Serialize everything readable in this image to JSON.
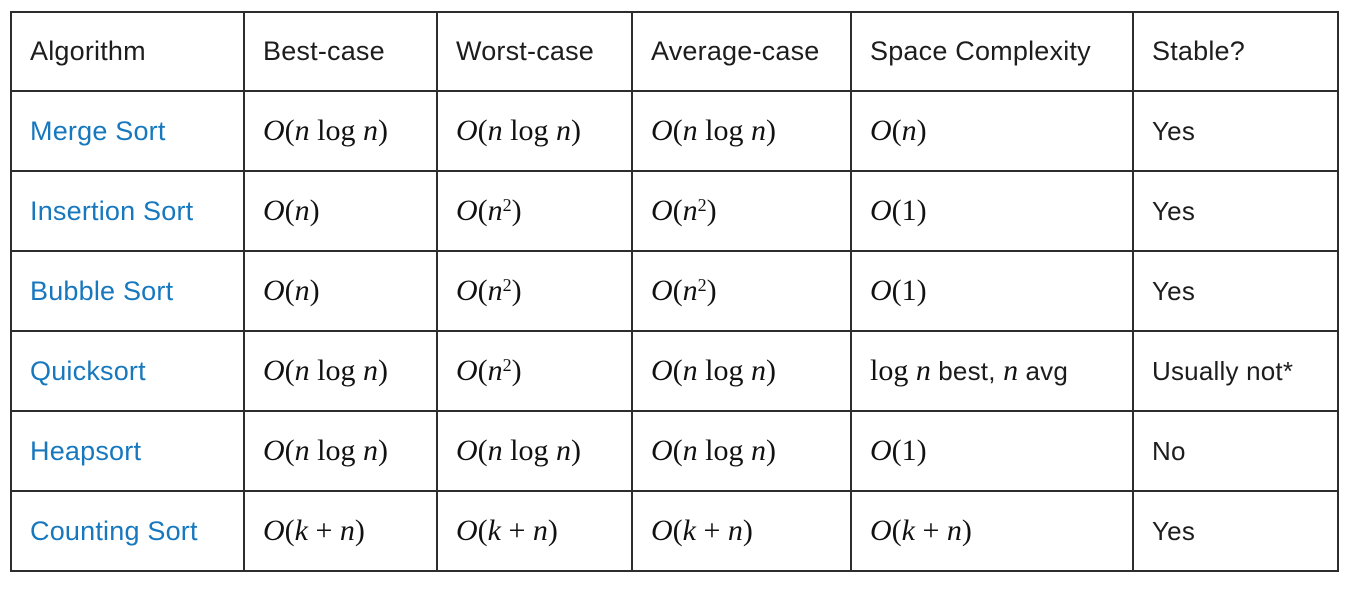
{
  "colors": {
    "link_blue": "#1778be",
    "border": "#2d2d2d",
    "text": "#1d1d1d",
    "background": "#ffffff"
  },
  "table": {
    "headers": [
      "Algorithm",
      "Best-case",
      "Worst-case",
      "Average-case",
      "Space Complexity",
      "Stable?"
    ],
    "rows": [
      {
        "name": "Merge Sort",
        "best": [
          {
            "m": "O(n log n)"
          }
        ],
        "worst": [
          {
            "m": "O(n log n)"
          }
        ],
        "avg": [
          {
            "m": "O(n log n)"
          }
        ],
        "space": [
          {
            "m": "O(n)"
          }
        ],
        "stable": "Yes"
      },
      {
        "name": "Insertion Sort",
        "best": [
          {
            "m": "O(n)"
          }
        ],
        "worst": [
          {
            "m": "O(n^2)"
          }
        ],
        "avg": [
          {
            "m": "O(n^2)"
          }
        ],
        "space": [
          {
            "m": "O(1)"
          }
        ],
        "stable": "Yes"
      },
      {
        "name": "Bubble Sort",
        "best": [
          {
            "m": "O(n)"
          }
        ],
        "worst": [
          {
            "m": "O(n^2)"
          }
        ],
        "avg": [
          {
            "m": "O(n^2)"
          }
        ],
        "space": [
          {
            "m": "O(1)"
          }
        ],
        "stable": "Yes"
      },
      {
        "name": "Quicksort",
        "best": [
          {
            "m": "O(n log n)"
          }
        ],
        "worst": [
          {
            "m": "O(n^2)"
          }
        ],
        "avg": [
          {
            "m": "O(n log n)"
          }
        ],
        "space": [
          {
            "m": "log n"
          },
          {
            "t": " best, "
          },
          {
            "m": "n"
          },
          {
            "t": " avg"
          }
        ],
        "stable": "Usually not*"
      },
      {
        "name": "Heapsort",
        "best": [
          {
            "m": "O(n log n)"
          }
        ],
        "worst": [
          {
            "m": "O(n log n)"
          }
        ],
        "avg": [
          {
            "m": "O(n log n)"
          }
        ],
        "space": [
          {
            "m": "O(1)"
          }
        ],
        "stable": "No"
      },
      {
        "name": "Counting Sort",
        "best": [
          {
            "m": "O(k + n)"
          }
        ],
        "worst": [
          {
            "m": "O(k + n)"
          }
        ],
        "avg": [
          {
            "m": "O(k + n)"
          }
        ],
        "space": [
          {
            "m": "O(k + n)"
          }
        ],
        "stable": "Yes"
      }
    ]
  }
}
